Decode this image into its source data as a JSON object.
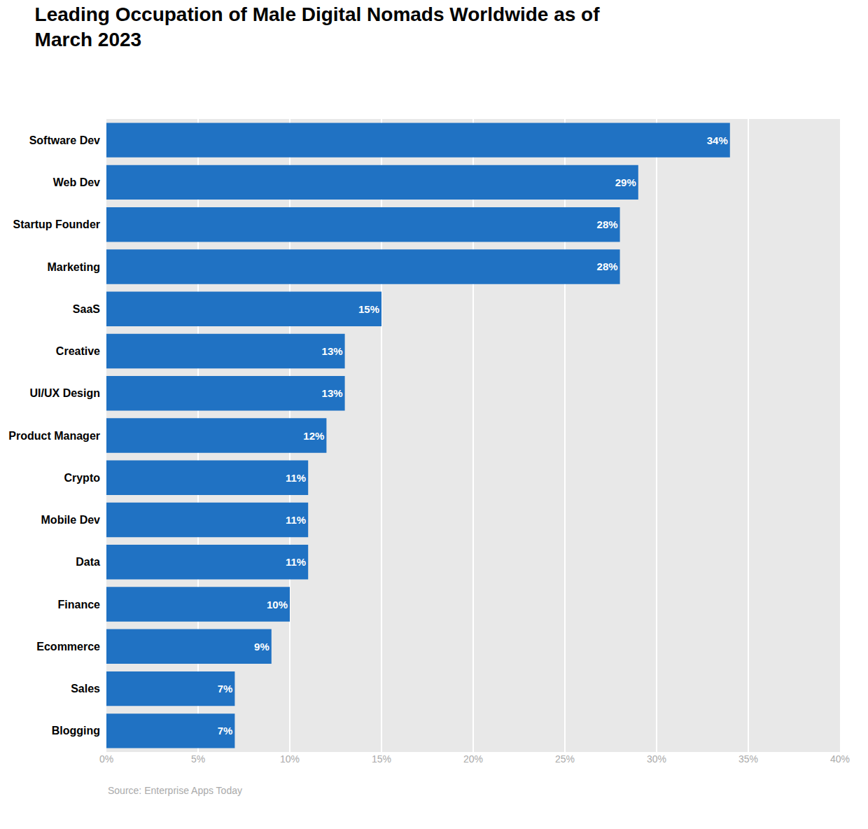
{
  "chart_data": {
    "type": "bar",
    "orientation": "horizontal",
    "title": "Leading Occupation of Male Digital Nomads Worldwide as of\nMarch 2023",
    "annotations": [
      "Source: Enterprise Apps Today"
    ],
    "categories": [
      "Software Dev",
      "Web Dev",
      "Startup Founder",
      "Marketing",
      "SaaS",
      "Creative",
      "UI/UX Design",
      "Product Manager",
      "Crypto",
      "Mobile Dev",
      "Data",
      "Finance",
      "Ecommerce",
      "Sales",
      "Blogging"
    ],
    "values": [
      34,
      29,
      28,
      28,
      15,
      13,
      13,
      12,
      11,
      11,
      11,
      10,
      9,
      7,
      7
    ],
    "value_labels": [
      "34%",
      "29%",
      "28%",
      "28%",
      "15%",
      "13%",
      "13%",
      "12%",
      "11%",
      "11%",
      "11%",
      "10%",
      "9%",
      "7%",
      "7%"
    ],
    "data_labels": true,
    "color": "#2072c3",
    "xlim": [
      0,
      40
    ],
    "xticks": [
      {
        "value": 0,
        "label": "0%"
      },
      {
        "value": 5,
        "label": "5%"
      },
      {
        "value": 10,
        "label": "10%"
      },
      {
        "value": 15,
        "label": "15%"
      },
      {
        "value": 20,
        "label": "20%"
      },
      {
        "value": 25,
        "label": "25%"
      },
      {
        "value": 30,
        "label": "30%"
      },
      {
        "value": 35,
        "label": "35%"
      },
      {
        "value": 40,
        "label": "40%"
      }
    ],
    "grid": true
  }
}
